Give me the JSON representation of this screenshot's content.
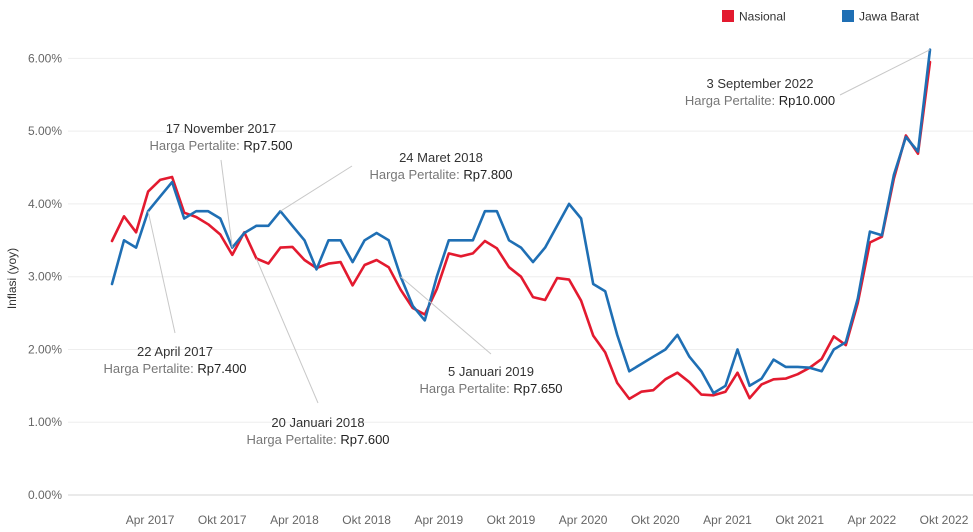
{
  "chart_data": {
    "type": "line",
    "title": "",
    "xlabel": "",
    "ylabel": "Inflasi (yoy)",
    "ylim": [
      0,
      6.5
    ],
    "x_start": "2017-01",
    "x_months": 70,
    "x_ticks": [
      {
        "label": "Apr 2017",
        "x": 3
      },
      {
        "label": "Okt 2017",
        "x": 9
      },
      {
        "label": "Apr 2018",
        "x": 15
      },
      {
        "label": "Okt 2018",
        "x": 21
      },
      {
        "label": "Apr 2019",
        "x": 27
      },
      {
        "label": "Okt 2019",
        "x": 33
      },
      {
        "label": "Apr 2020",
        "x": 39
      },
      {
        "label": "Okt 2020",
        "x": 45
      },
      {
        "label": "Apr 2021",
        "x": 51
      },
      {
        "label": "Okt 2021",
        "x": 57
      },
      {
        "label": "Apr 2022",
        "x": 63
      },
      {
        "label": "Okt 2022",
        "x": 69
      }
    ],
    "y_ticks": [
      {
        "label": "0.00%",
        "v": 0
      },
      {
        "label": "1.00%",
        "v": 1
      },
      {
        "label": "2.00%",
        "v": 2
      },
      {
        "label": "3.00%",
        "v": 3
      },
      {
        "label": "4.00%",
        "v": 4
      },
      {
        "label": "5.00%",
        "v": 5
      },
      {
        "label": "6.00%",
        "v": 6
      }
    ],
    "legend": {
      "position": "top-right"
    },
    "grid": true,
    "series": [
      {
        "name": "Nasional",
        "color": "#e31a2f",
        "values": [
          3.49,
          3.83,
          3.61,
          4.17,
          4.33,
          4.37,
          3.88,
          3.82,
          3.72,
          3.58,
          3.3,
          3.61,
          3.25,
          3.18,
          3.4,
          3.41,
          3.23,
          3.12,
          3.18,
          3.2,
          2.88,
          3.16,
          3.23,
          3.13,
          2.82,
          2.57,
          2.48,
          2.83,
          3.32,
          3.28,
          3.32,
          3.49,
          3.39,
          3.13,
          3.0,
          2.72,
          2.68,
          2.98,
          2.96,
          2.67,
          2.19,
          1.96,
          1.54,
          1.32,
          1.42,
          1.44,
          1.59,
          1.68,
          1.55,
          1.38,
          1.37,
          1.42,
          1.68,
          1.33,
          1.52,
          1.59,
          1.6,
          1.66,
          1.75,
          1.87,
          2.18,
          2.06,
          2.64,
          3.47,
          3.55,
          4.35,
          4.94,
          4.69,
          5.95
        ]
      },
      {
        "name": "Jawa Barat",
        "color": "#1f6fb4",
        "values": [
          2.9,
          3.5,
          3.4,
          3.9,
          4.1,
          4.3,
          3.8,
          3.9,
          3.9,
          3.8,
          3.4,
          3.6,
          3.7,
          3.7,
          3.9,
          3.7,
          3.5,
          3.1,
          3.5,
          3.5,
          3.2,
          3.5,
          3.6,
          3.5,
          3.0,
          2.6,
          2.4,
          3.0,
          3.5,
          3.5,
          3.5,
          3.9,
          3.9,
          3.5,
          3.4,
          3.2,
          3.4,
          3.7,
          4.0,
          3.8,
          2.9,
          2.8,
          2.2,
          1.7,
          1.8,
          1.9,
          2.0,
          2.2,
          1.9,
          1.7,
          1.4,
          1.5,
          2.0,
          1.5,
          1.6,
          1.86,
          1.76,
          1.76,
          1.75,
          1.7,
          2.0,
          2.1,
          2.7,
          3.62,
          3.57,
          4.4,
          4.92,
          4.72,
          6.12
        ]
      }
    ],
    "annotations": [
      {
        "date": "22 April 2017",
        "price_label": "Harga Pertalite: ",
        "price_value": "Rp7.400",
        "x": 3,
        "series": 1
      },
      {
        "date": "17 November 2017",
        "price_label": "Harga Pertalite: ",
        "price_value": "Rp7.500",
        "x": 10,
        "series": 1
      },
      {
        "date": "20 Januari 2018",
        "price_label": "Harga Pertalite: ",
        "price_value": "Rp7.600",
        "x": 12,
        "series": 0
      },
      {
        "date": "24 Maret 2018",
        "price_label": "Harga Pertalite: ",
        "price_value": "Rp7.800",
        "x": 14,
        "series": 1
      },
      {
        "date": "5 Januari 2019",
        "price_label": "Harga Pertalite: ",
        "price_value": "Rp7.650",
        "x": 24,
        "series": 1
      },
      {
        "date": "3 September 2022",
        "price_label": "Harga Pertalite: ",
        "price_value": "Rp10.000",
        "x": 68,
        "series": 1
      }
    ]
  }
}
